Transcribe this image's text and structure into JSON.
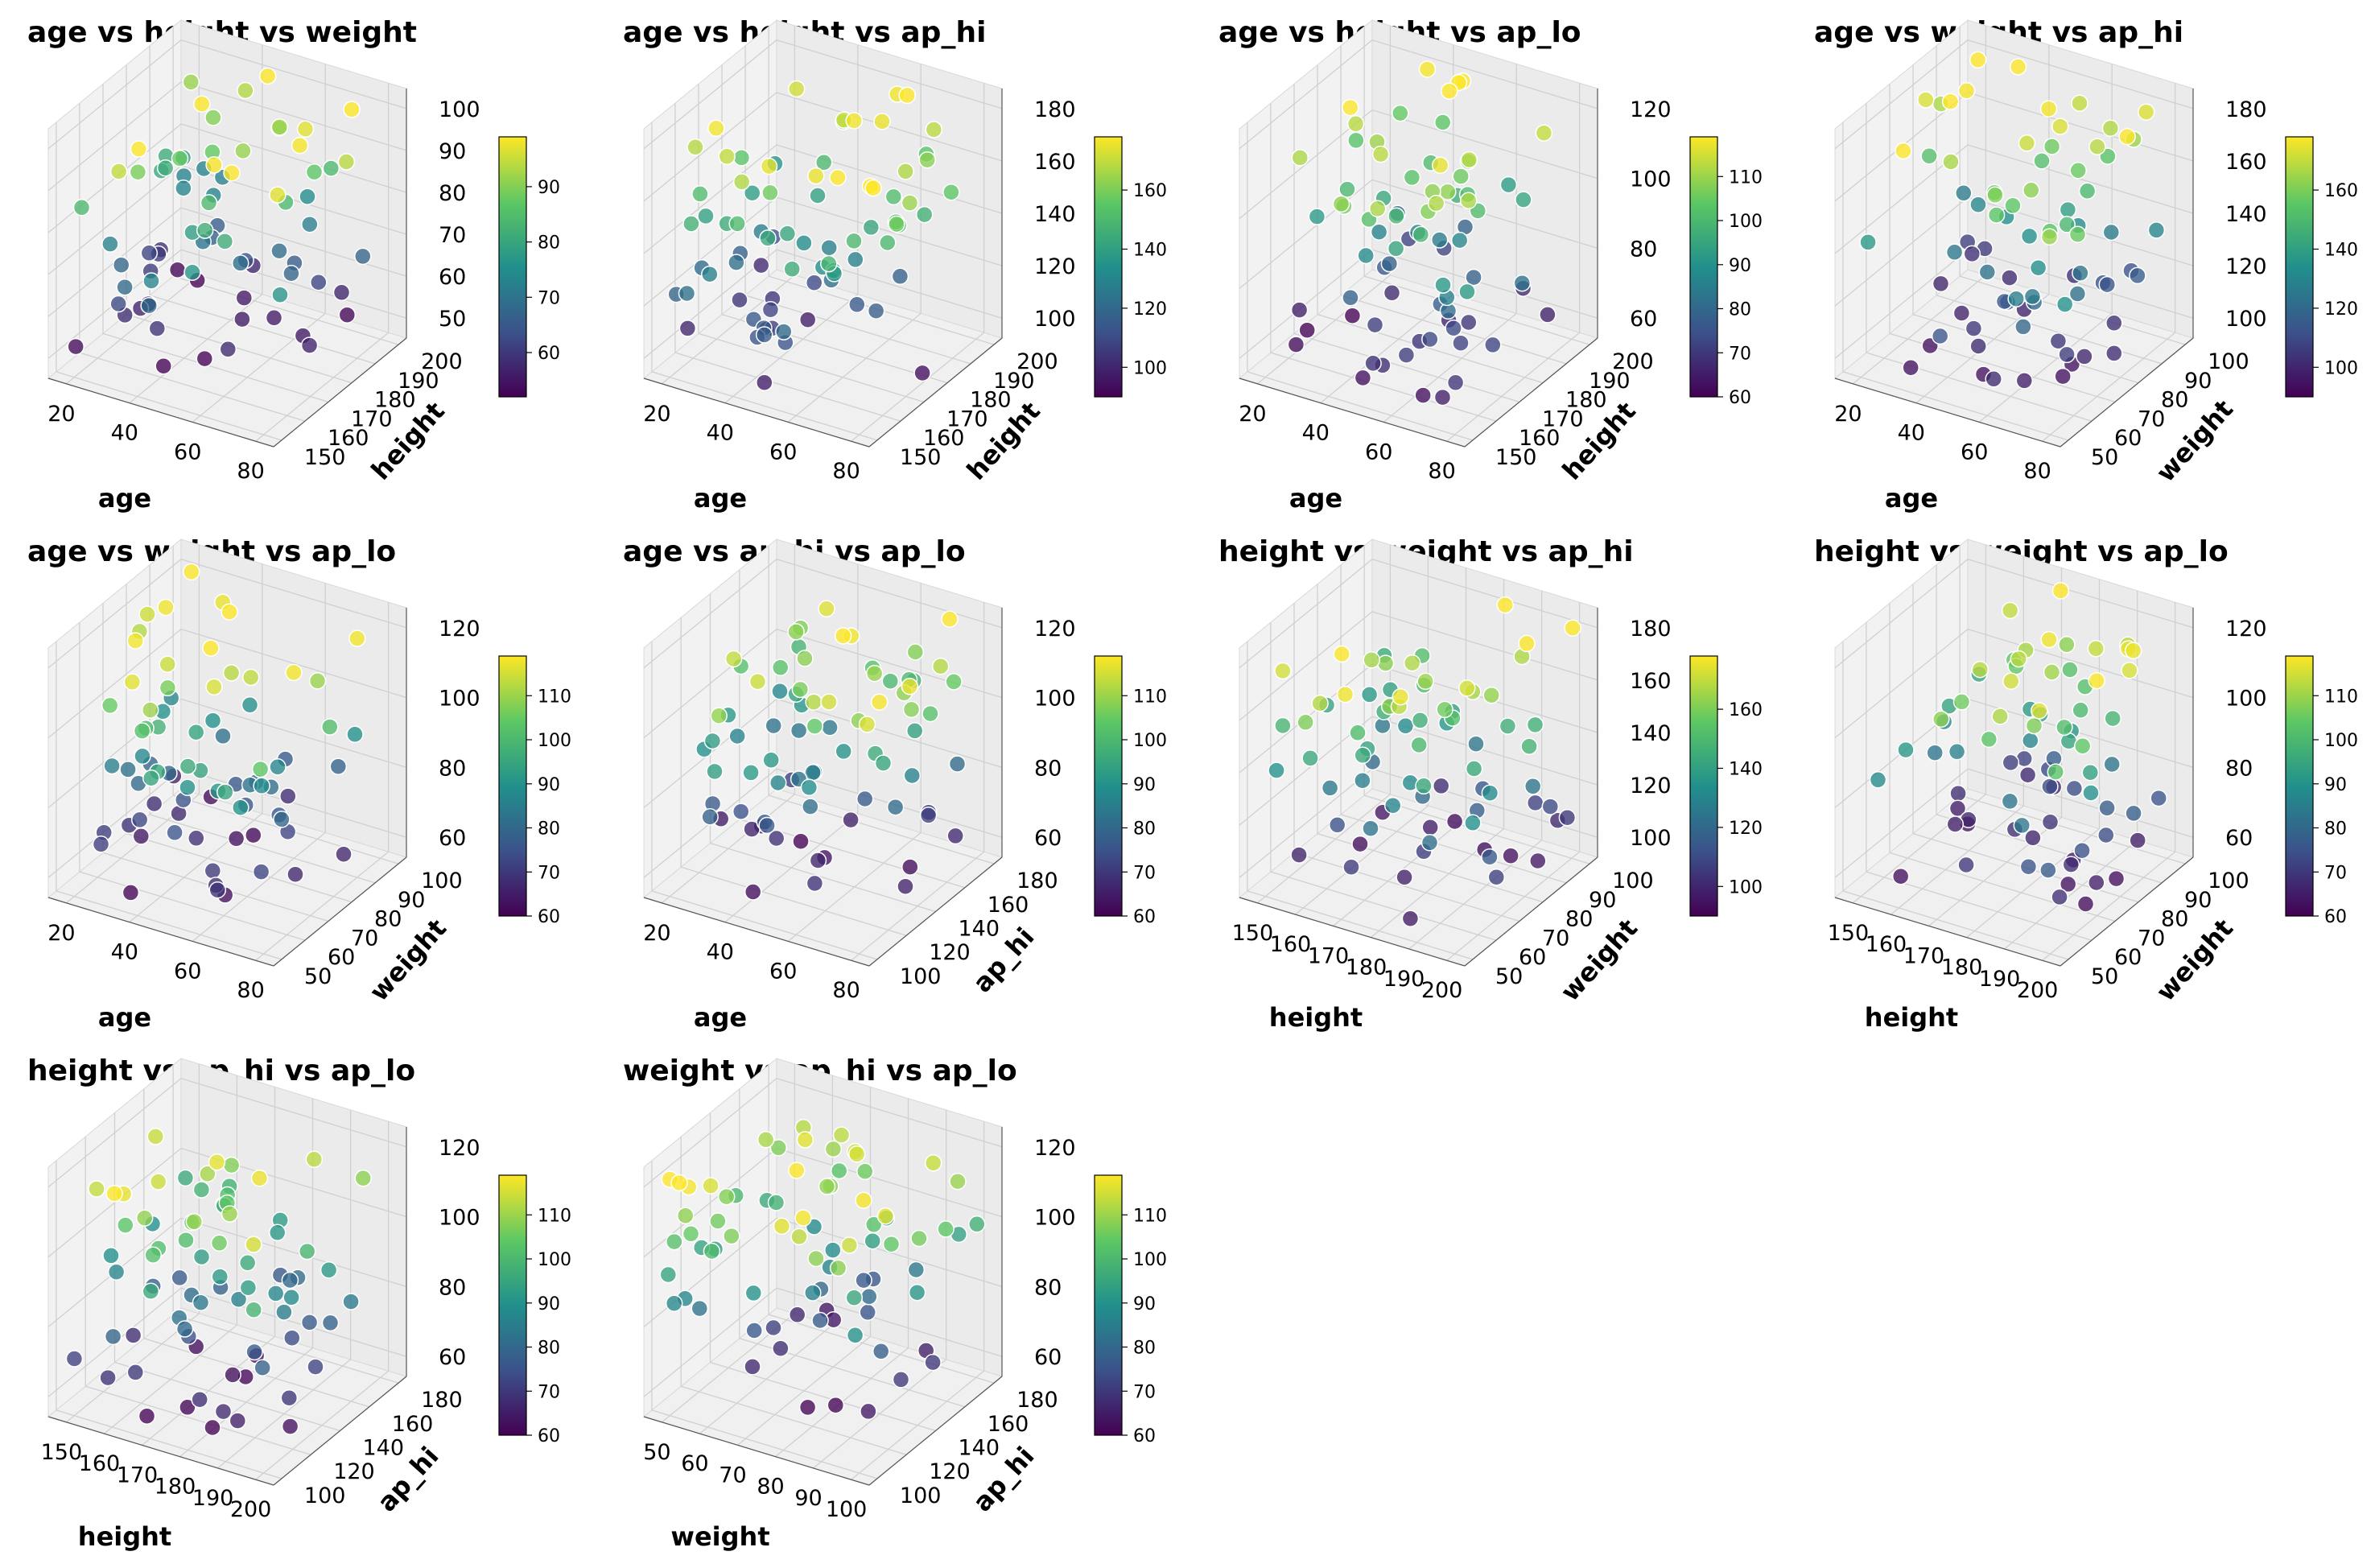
{
  "chart_data": [
    {
      "type": "scatter3d",
      "title": "age vs height vs weight",
      "xlabel": "age",
      "ylabel": "height",
      "zlabel": "weight",
      "xticks": [
        "20",
        "40",
        "60",
        "80"
      ],
      "yticks": [
        "150",
        "160",
        "170",
        "180",
        "190",
        "200"
      ],
      "zticks": [
        "50",
        "60",
        "70",
        "80",
        "90",
        "100"
      ],
      "colorbar_ticks": [
        "60",
        "70",
        "80",
        "90"
      ],
      "colorbar_range": [
        52,
        99
      ],
      "xlim": [
        15,
        85
      ],
      "ylim": [
        148,
        202
      ],
      "zlim": [
        47,
        103
      ]
    },
    {
      "type": "scatter3d",
      "title": "age vs height vs ap_hi",
      "xlabel": "age",
      "ylabel": "height",
      "zlabel": "ap_hi",
      "xticks": [
        "20",
        "40",
        "60",
        "80"
      ],
      "yticks": [
        "150",
        "160",
        "170",
        "180",
        "190",
        "200"
      ],
      "zticks": [
        "100",
        "120",
        "140",
        "160",
        "180"
      ],
      "colorbar_ticks": [
        "100",
        "120",
        "140",
        "160"
      ],
      "colorbar_range": [
        90,
        178
      ],
      "xlim": [
        15,
        85
      ],
      "ylim": [
        148,
        202
      ],
      "zlim": [
        88,
        185
      ]
    },
    {
      "type": "scatter3d",
      "title": "age vs height vs ap_lo",
      "xlabel": "age",
      "ylabel": "height",
      "zlabel": "ap_lo",
      "xticks": [
        "20",
        "40",
        "60",
        "80"
      ],
      "yticks": [
        "150",
        "160",
        "170",
        "180",
        "190",
        "200"
      ],
      "zticks": [
        "60",
        "80",
        "100",
        "120"
      ],
      "colorbar_ticks": [
        "60",
        "70",
        "80",
        "90",
        "100",
        "110"
      ],
      "colorbar_range": [
        60,
        119
      ],
      "xlim": [
        15,
        85
      ],
      "ylim": [
        148,
        202
      ],
      "zlim": [
        56,
        124
      ]
    },
    {
      "type": "scatter3d",
      "title": "age vs weight vs ap_hi",
      "xlabel": "age",
      "ylabel": "weight",
      "zlabel": "ap_hi",
      "xticks": [
        "20",
        "40",
        "60",
        "80"
      ],
      "yticks": [
        "50",
        "60",
        "70",
        "80",
        "90",
        "100"
      ],
      "zticks": [
        "100",
        "120",
        "140",
        "160",
        "180"
      ],
      "colorbar_ticks": [
        "100",
        "120",
        "140",
        "160"
      ],
      "colorbar_range": [
        90,
        178
      ],
      "xlim": [
        15,
        85
      ],
      "ylim": [
        47,
        103
      ],
      "zlim": [
        88,
        185
      ]
    },
    {
      "type": "scatter3d",
      "title": "age vs weight vs ap_lo",
      "xlabel": "age",
      "ylabel": "weight",
      "zlabel": "ap_lo",
      "xticks": [
        "20",
        "40",
        "60",
        "80"
      ],
      "yticks": [
        "50",
        "60",
        "70",
        "80",
        "90",
        "100"
      ],
      "zticks": [
        "60",
        "80",
        "100",
        "120"
      ],
      "colorbar_ticks": [
        "60",
        "70",
        "80",
        "90",
        "100",
        "110"
      ],
      "colorbar_range": [
        60,
        119
      ],
      "xlim": [
        15,
        85
      ],
      "ylim": [
        47,
        103
      ],
      "zlim": [
        56,
        124
      ]
    },
    {
      "type": "scatter3d",
      "title": "age vs ap_hi vs ap_lo",
      "xlabel": "age",
      "ylabel": "ap_hi",
      "zlabel": "ap_lo",
      "xticks": [
        "20",
        "40",
        "60",
        "80"
      ],
      "yticks": [
        "100",
        "120",
        "140",
        "160",
        "180"
      ],
      "zticks": [
        "60",
        "80",
        "100",
        "120"
      ],
      "colorbar_ticks": [
        "60",
        "70",
        "80",
        "90",
        "100",
        "110"
      ],
      "colorbar_range": [
        60,
        119
      ],
      "xlim": [
        15,
        85
      ],
      "ylim": [
        88,
        185
      ],
      "zlim": [
        56,
        124
      ]
    },
    {
      "type": "scatter3d",
      "title": "height vs weight vs ap_hi",
      "xlabel": "height",
      "ylabel": "weight",
      "zlabel": "ap_hi",
      "xticks": [
        "150",
        "160",
        "170",
        "180",
        "190",
        "200"
      ],
      "yticks": [
        "50",
        "60",
        "70",
        "80",
        "90",
        "100"
      ],
      "zticks": [
        "100",
        "120",
        "140",
        "160",
        "180"
      ],
      "colorbar_ticks": [
        "100",
        "120",
        "140",
        "160"
      ],
      "colorbar_range": [
        90,
        178
      ],
      "xlim": [
        146,
        204
      ],
      "ylim": [
        47,
        103
      ],
      "zlim": [
        88,
        185
      ]
    },
    {
      "type": "scatter3d",
      "title": "height vs weight vs ap_lo",
      "xlabel": "height",
      "ylabel": "weight",
      "zlabel": "ap_lo",
      "xticks": [
        "150",
        "160",
        "170",
        "180",
        "190",
        "200"
      ],
      "yticks": [
        "50",
        "60",
        "70",
        "80",
        "90",
        "100"
      ],
      "zticks": [
        "60",
        "80",
        "100",
        "120"
      ],
      "colorbar_ticks": [
        "60",
        "70",
        "80",
        "90",
        "100",
        "110"
      ],
      "colorbar_range": [
        60,
        119
      ],
      "xlim": [
        146,
        204
      ],
      "ylim": [
        47,
        103
      ],
      "zlim": [
        56,
        124
      ]
    },
    {
      "type": "scatter3d",
      "title": "height vs ap_hi vs ap_lo",
      "xlabel": "height",
      "ylabel": "ap_hi",
      "zlabel": "ap_lo",
      "xticks": [
        "150",
        "160",
        "170",
        "180",
        "190",
        "200"
      ],
      "yticks": [
        "100",
        "120",
        "140",
        "160",
        "180"
      ],
      "zticks": [
        "60",
        "80",
        "100",
        "120"
      ],
      "colorbar_ticks": [
        "60",
        "70",
        "80",
        "90",
        "100",
        "110"
      ],
      "colorbar_range": [
        60,
        119
      ],
      "xlim": [
        146,
        204
      ],
      "ylim": [
        88,
        185
      ],
      "zlim": [
        56,
        124
      ]
    },
    {
      "type": "scatter3d",
      "title": "weight vs ap_hi vs ap_lo",
      "xlabel": "weight",
      "ylabel": "ap_hi",
      "zlabel": "ap_lo",
      "xticks": [
        "50",
        "60",
        "70",
        "80",
        "90",
        "100"
      ],
      "yticks": [
        "100",
        "120",
        "140",
        "160",
        "180"
      ],
      "zticks": [
        "60",
        "80",
        "100",
        "120"
      ],
      "colorbar_ticks": [
        "60",
        "70",
        "80",
        "90",
        "100",
        "110"
      ],
      "colorbar_range": [
        60,
        119
      ],
      "xlim": [
        46,
        104
      ],
      "ylim": [
        88,
        185
      ],
      "zlim": [
        56,
        124
      ]
    }
  ],
  "colormap": [
    "#440154",
    "#3b528b",
    "#21908c",
    "#5dc863",
    "#fde725"
  ]
}
